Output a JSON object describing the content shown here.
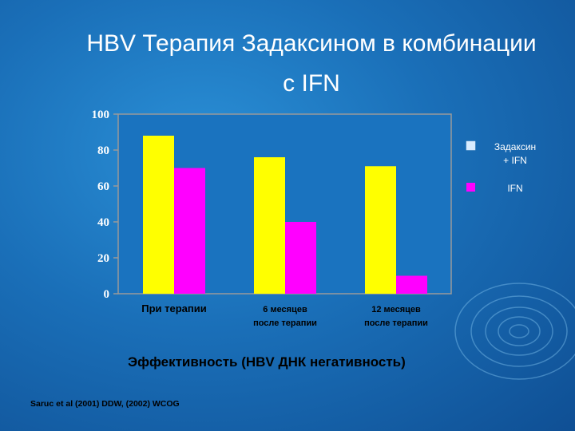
{
  "slide": {
    "title_line1": "HBV Терапия Задаксином в комбинации",
    "title_line2": "с IFN",
    "footer_title": "Эффективность (HBV ДНК негативность)",
    "citation": "Saruc et al (2001) DDW, (2002) WCOG"
  },
  "chart_data": {
    "type": "bar",
    "categories": [
      [
        "При терапии"
      ],
      [
        "6 месяцев",
        "после терапии"
      ],
      [
        "12 месяцев",
        "после терапии"
      ]
    ],
    "series": [
      {
        "name": "Задаксин + IFN",
        "legend_lines": [
          "Задаксин",
          "+ IFN"
        ],
        "values": [
          88,
          76,
          71
        ],
        "color": "#ffff00"
      },
      {
        "name": "IFN",
        "legend_lines": [
          "IFN"
        ],
        "values": [
          70,
          40,
          10
        ],
        "color": "#ff00ff"
      }
    ],
    "ylim": [
      0,
      100
    ],
    "yticks": [
      0,
      20,
      40,
      60,
      80,
      100
    ],
    "legend_position": "right",
    "plot_background": "#1a73bf",
    "axis_color": "#9a9a9a"
  }
}
